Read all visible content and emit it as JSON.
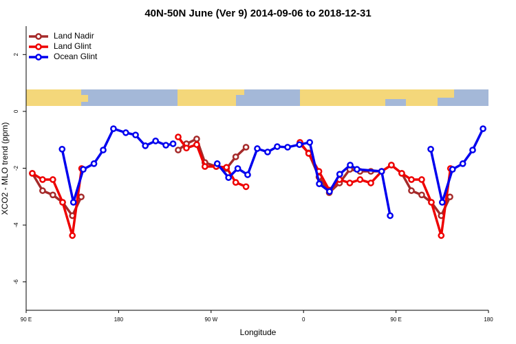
{
  "chart_data": {
    "type": "line",
    "title": "40N-50N June (Ver 9)   2014-09-06 to 2018-12-31",
    "x_label": "Longitude",
    "y_label": "XCO2 - MLO trend (ppm)",
    "xlim": [
      90,
      540
    ],
    "xticks": [
      {
        "value": 90,
        "label": "90 E"
      },
      {
        "value": 180,
        "label": "180"
      },
      {
        "value": 270,
        "label": "90 W"
      },
      {
        "value": 360,
        "label": "0"
      },
      {
        "value": 450,
        "label": "90 E"
      },
      {
        "value": 540,
        "label": "180"
      }
    ],
    "ylim": [
      -7,
      3
    ],
    "yticks": [
      -6,
      -4,
      -2,
      0,
      2
    ],
    "legend": "top-left",
    "series": [
      {
        "name": "Land Nadir",
        "color": "#a52a2a",
        "x": [
          96,
          106,
          116,
          125.5,
          135,
          143.6,
          null,
          238,
          246,
          256,
          264,
          275,
          285,
          294,
          304,
          null,
          356.5,
          365,
          375,
          385,
          395,
          405,
          415,
          425.5,
          436,
          445.5,
          455.6,
          465,
          475,
          484.4,
          494,
          502.5
        ],
        "values": [
          -2.18,
          -2.79,
          -2.94,
          -3.2,
          -3.67,
          -3.01,
          null,
          -1.36,
          -1.14,
          -0.97,
          -1.8,
          -1.94,
          -2.01,
          -1.6,
          -1.26,
          null,
          -1.14,
          -1.46,
          -2.31,
          -2.86,
          -2.52,
          -2.04,
          -2.11,
          -2.11,
          -2.11,
          -1.89,
          -2.18,
          -2.79,
          -2.94,
          -3.2,
          -3.67,
          -3.01
        ]
      },
      {
        "name": "Land Glint",
        "color": "#ee0000",
        "x": [
          96,
          106,
          116,
          125.5,
          135,
          144,
          null,
          238,
          246,
          256,
          264,
          275,
          285,
          294,
          304,
          null,
          356.5,
          365,
          375,
          385,
          395,
          405,
          415,
          425.5,
          436,
          445.5,
          455.6,
          465,
          475,
          484.4,
          494,
          503
        ],
        "values": [
          -2.18,
          -2.4,
          -2.4,
          -3.2,
          -4.37,
          -2.01,
          null,
          -0.9,
          -1.29,
          -1.17,
          -1.94,
          -1.94,
          -1.97,
          -2.5,
          -2.65,
          null,
          -1.09,
          -1.48,
          -2.11,
          -2.77,
          -2.4,
          -2.52,
          -2.4,
          -2.52,
          -2.11,
          -1.89,
          -2.18,
          -2.4,
          -2.4,
          -3.2,
          -4.37,
          -2.01
        ]
      },
      {
        "name": "Ocean Glint",
        "color": "#0000ee",
        "x": [
          125,
          136,
          145.6,
          156,
          165,
          175,
          187,
          196.5,
          206,
          216,
          226,
          233,
          null,
          276,
          287,
          296,
          305.6,
          315,
          325,
          334.4,
          344.5,
          356,
          366,
          375.3,
          385.3,
          395.2,
          405.4,
          412,
          436,
          444.3,
          null,
          483.8,
          495,
          505,
          515,
          524.6,
          534.7
        ],
        "values": [
          -1.33,
          -3.2,
          -2.04,
          -1.84,
          -1.36,
          -0.61,
          -0.75,
          -0.83,
          -1.21,
          -1.04,
          -1.19,
          -1.14,
          null,
          -1.84,
          -2.33,
          -2.01,
          -2.23,
          -1.31,
          -1.43,
          -1.24,
          -1.26,
          -1.17,
          -1.09,
          -2.55,
          -2.82,
          -2.21,
          -1.89,
          -2.04,
          -2.11,
          -3.67,
          null,
          -1.33,
          -3.2,
          -2.04,
          -1.84,
          -1.36,
          -0.61
        ]
      }
    ]
  }
}
